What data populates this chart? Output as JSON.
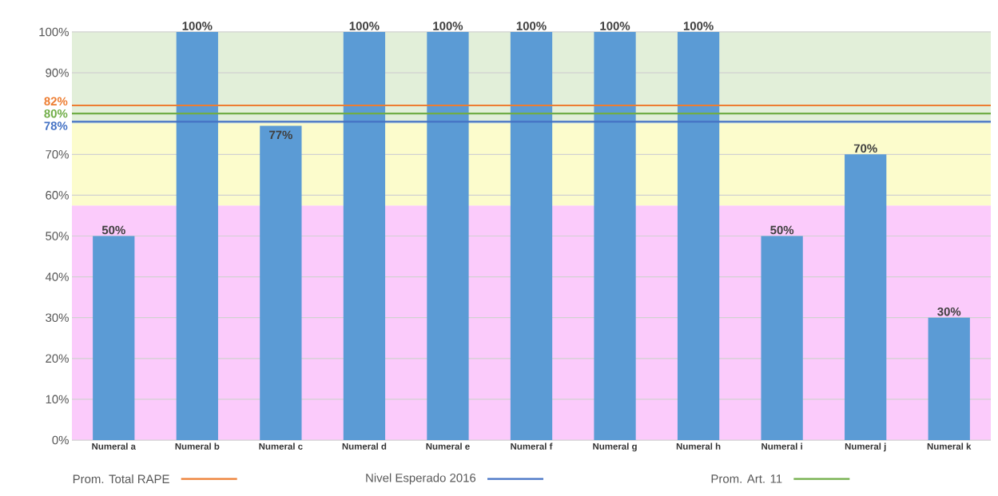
{
  "chart_data": {
    "type": "bar",
    "categories": [
      "Numeral a",
      "Numeral b",
      "Numeral c",
      "Numeral d",
      "Numeral e",
      "Numeral f",
      "Numeral g",
      "Numeral h",
      "Numeral i",
      "Numeral j",
      "Numeral k"
    ],
    "values": [
      50,
      100,
      77,
      100,
      100,
      100,
      100,
      100,
      50,
      70,
      30
    ],
    "value_labels": [
      "50%",
      "100%",
      "77%",
      "100%",
      "100%",
      "100%",
      "100%",
      "100%",
      "50%",
      "70%",
      "30%"
    ],
    "color": "#5b9bd5",
    "ylim": [
      0,
      100
    ],
    "yticks": [
      {
        "value": 0,
        "label": "0%"
      },
      {
        "value": 10,
        "label": "10%"
      },
      {
        "value": 20,
        "label": "20%"
      },
      {
        "value": 30,
        "label": "30%"
      },
      {
        "value": 40,
        "label": "40%"
      },
      {
        "value": 50,
        "label": "50%"
      },
      {
        "value": 60,
        "label": "60%"
      },
      {
        "value": 70,
        "label": "70%"
      },
      {
        "value": 80,
        "label": null
      },
      {
        "value": 90,
        "label": "90%"
      },
      {
        "value": 100,
        "label": "100%"
      }
    ],
    "grid": "y",
    "bands": [
      {
        "axis": "y",
        "from": 0,
        "to": 57.5,
        "color": "#fbcbfb"
      },
      {
        "axis": "y",
        "from": 57.5,
        "to": 77.5,
        "color": "#fcfccc"
      },
      {
        "axis": "y",
        "from": 77.5,
        "to": 100,
        "color": "#e2efd9"
      }
    ],
    "ref_lines": [
      {
        "axis": "y",
        "value": 82,
        "label": "Prom. Total RAPE",
        "color": "#ed7d31"
      },
      {
        "axis": "y",
        "value": 78,
        "label": "Nivel Esperado  2016",
        "color": "#4472c4"
      },
      {
        "axis": "y",
        "value": 80,
        "label": "Prom. Art. 11",
        "color": "#70ad47"
      }
    ],
    "annotations": [
      "82%",
      "80%",
      "78%"
    ],
    "legend": "bottom"
  }
}
